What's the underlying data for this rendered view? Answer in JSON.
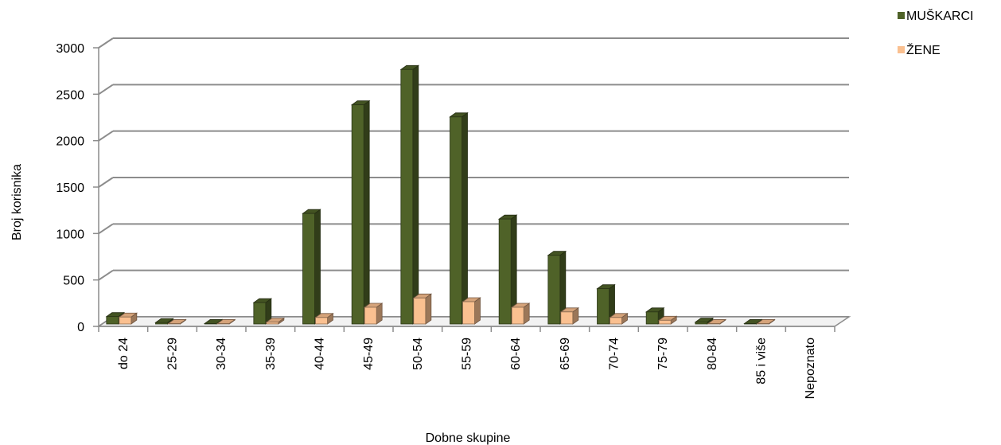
{
  "chart_data": {
    "type": "bar",
    "categories": [
      "do 24",
      "25-29",
      "30-34",
      "35-39",
      "40-44",
      "45-49",
      "50-54",
      "55-59",
      "60-64",
      "65-69",
      "70-74",
      "75-79",
      "80-84",
      "85 i više",
      "Nepoznato"
    ],
    "series": [
      {
        "name": "MUŠKARCI",
        "color": "#4f6228",
        "values": [
          80,
          15,
          5,
          230,
          1190,
          2360,
          2740,
          2230,
          1130,
          740,
          380,
          130,
          20,
          5,
          0
        ]
      },
      {
        "name": "ŽENE",
        "color": "#fac090",
        "values": [
          75,
          5,
          5,
          20,
          70,
          180,
          280,
          240,
          180,
          130,
          70,
          40,
          5,
          5,
          0
        ]
      }
    ],
    "xlabel": "Dobne skupine",
    "ylabel": "Broj korisnika",
    "ylim": [
      0,
      3000
    ],
    "yticks": [
      0,
      500,
      1000,
      1500,
      2000,
      2500,
      3000
    ],
    "grid": true,
    "legend": "top-right"
  }
}
